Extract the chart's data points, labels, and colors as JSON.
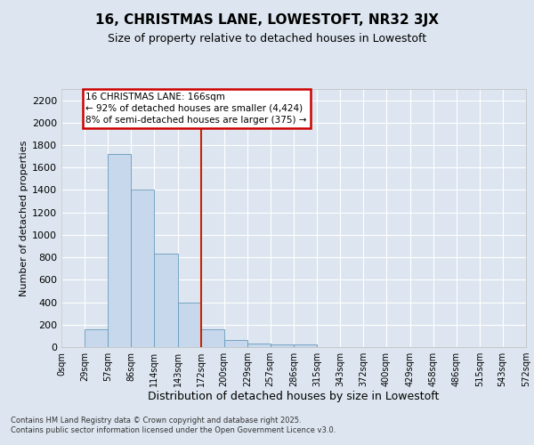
{
  "title": "16, CHRISTMAS LANE, LOWESTOFT, NR32 3JX",
  "subtitle": "Size of property relative to detached houses in Lowestoft",
  "xlabel": "Distribution of detached houses by size in Lowestoft",
  "ylabel": "Number of detached properties",
  "bin_edges": [
    0,
    29,
    57,
    86,
    114,
    143,
    172,
    200,
    229,
    257,
    286,
    315,
    343,
    372,
    400,
    429,
    458,
    486,
    515,
    543,
    572
  ],
  "bar_heights": [
    0,
    160,
    1720,
    1400,
    830,
    400,
    160,
    65,
    30,
    20,
    20,
    0,
    0,
    0,
    0,
    0,
    0,
    0,
    0,
    0
  ],
  "bar_color": "#c8d8ec",
  "bar_edge_color": "#6699bb",
  "property_line_x": 172,
  "annotation_title": "16 CHRISTMAS LANE: 166sqm",
  "annotation_line1": "← 92% of detached houses are smaller (4,424)",
  "annotation_line2": "8% of semi-detached houses are larger (375) →",
  "annotation_box_color": "#ffffff",
  "annotation_box_edge": "#cc0000",
  "red_line_color": "#cc2200",
  "ylim": [
    0,
    2300
  ],
  "yticks": [
    0,
    200,
    400,
    600,
    800,
    1000,
    1200,
    1400,
    1600,
    1800,
    2000,
    2200
  ],
  "tick_labels": [
    "0sqm",
    "29sqm",
    "57sqm",
    "86sqm",
    "114sqm",
    "143sqm",
    "172sqm",
    "200sqm",
    "229sqm",
    "257sqm",
    "286sqm",
    "315sqm",
    "343sqm",
    "372sqm",
    "400sqm",
    "429sqm",
    "458sqm",
    "486sqm",
    "515sqm",
    "543sqm",
    "572sqm"
  ],
  "bg_color": "#dde6f0",
  "grid_color": "#ffffff",
  "footer_line1": "Contains HM Land Registry data © Crown copyright and database right 2025.",
  "footer_line2": "Contains public sector information licensed under the Open Government Licence v3.0."
}
